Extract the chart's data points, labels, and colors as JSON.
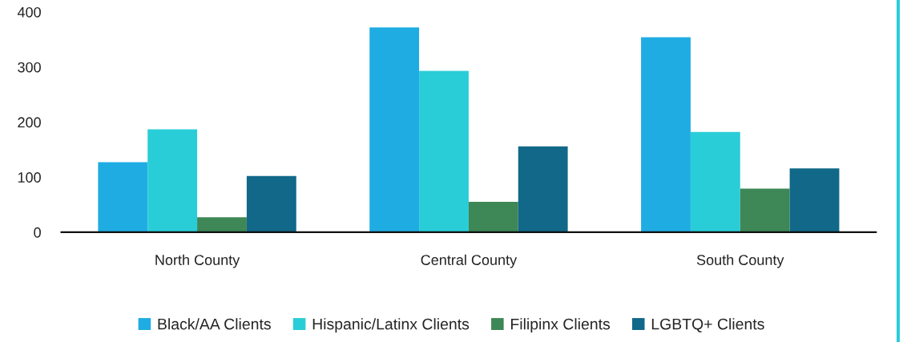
{
  "chart_data": {
    "type": "bar",
    "categories": [
      "North County",
      "Central County",
      "South County"
    ],
    "series": [
      {
        "name": "Black/AA Clients",
        "color": "#1face3",
        "values": [
          127,
          372,
          354
        ]
      },
      {
        "name": "Hispanic/Latinx Clients",
        "color": "#29cdd7",
        "values": [
          187,
          293,
          182
        ]
      },
      {
        "name": "Filipinx Clients",
        "color": "#3e8756",
        "values": [
          27,
          55,
          79
        ]
      },
      {
        "name": "LGBTQ+ Clients",
        "color": "#116888",
        "values": [
          102,
          156,
          116
        ]
      }
    ],
    "ylim": [
      0,
      400
    ],
    "yticks": [
      0,
      100,
      200,
      300,
      400
    ],
    "grid": false,
    "legend": "bottom"
  }
}
